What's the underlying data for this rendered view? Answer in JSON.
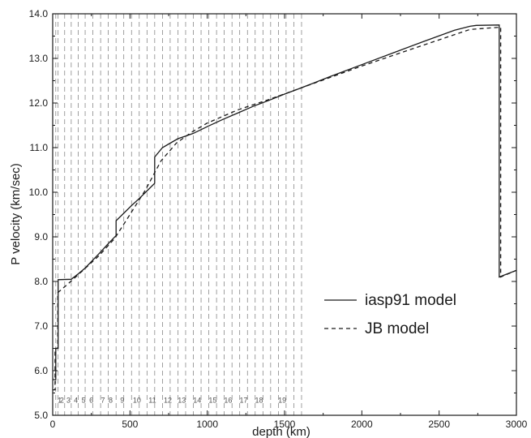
{
  "chart_data": {
    "type": "line",
    "title": "",
    "xlabel": "depth (km)",
    "ylabel": "P velocity (km/sec)",
    "xlim": [
      0,
      3000
    ],
    "ylim": [
      5.0,
      14.0
    ],
    "xticks": [
      0,
      500,
      1000,
      1500,
      2000,
      2500,
      3000
    ],
    "yticks": [
      5.0,
      6.0,
      7.0,
      8.0,
      9.0,
      10.0,
      11.0,
      12.0,
      13.0,
      14.0
    ],
    "legend_position": "lower-right",
    "grid": false,
    "series": [
      {
        "name": "iasp91 model",
        "style": "solid",
        "color": "#1a1a1a",
        "x": [
          0,
          20,
          20,
          35,
          35,
          120,
          165,
          210,
          260,
          310,
          360,
          410,
          410,
          460,
          510,
          560,
          610,
          660,
          660,
          710,
          760,
          810,
          860,
          910,
          1000,
          1100,
          1200,
          1300,
          1400,
          1500,
          1600,
          1800,
          2000,
          2200,
          2400,
          2600,
          2700,
          2740,
          2889,
          2889,
          3000
        ],
        "y": [
          5.8,
          5.8,
          6.5,
          6.5,
          8.04,
          8.05,
          8.17,
          8.3,
          8.48,
          8.66,
          8.85,
          9.03,
          9.36,
          9.53,
          9.7,
          9.86,
          10.03,
          10.2,
          10.79,
          11.0,
          11.1,
          11.2,
          11.26,
          11.32,
          11.47,
          11.63,
          11.78,
          11.93,
          12.06,
          12.2,
          12.33,
          12.6,
          12.86,
          13.12,
          13.38,
          13.63,
          13.72,
          13.74,
          13.75,
          8.1,
          8.25
        ]
      },
      {
        "name": "JB model",
        "style": "dashed",
        "color": "#1a1a1a",
        "x": [
          0,
          15,
          15,
          33,
          33,
          100,
          200,
          300,
          400,
          500,
          600,
          700,
          800,
          900,
          1000,
          1100,
          1200,
          1400,
          1600,
          2000,
          2400,
          2700,
          2898,
          2898,
          3000
        ],
        "y": [
          5.57,
          5.57,
          6.5,
          6.5,
          7.75,
          7.95,
          8.26,
          8.58,
          8.96,
          9.5,
          10.05,
          10.7,
          11.1,
          11.35,
          11.55,
          11.7,
          11.85,
          12.08,
          12.33,
          12.83,
          13.3,
          13.65,
          13.7,
          8.1,
          8.25
        ]
      }
    ],
    "layer_boundaries_km": [
      20,
      35,
      77.5,
      120,
      165,
      210,
      260,
      310,
      360,
      410,
      460,
      510,
      560,
      610,
      660,
      710,
      760,
      810,
      860,
      910,
      960,
      1010,
      1060,
      1110,
      1160,
      1210,
      1260,
      1310,
      1360,
      1410,
      1460,
      1510,
      1560,
      1610
    ],
    "layer_labels": [
      {
        "text": "1",
        "x": 45,
        "y": 5.28
      },
      {
        "text": "2",
        "x": 60,
        "y": 5.28
      },
      {
        "text": "3",
        "x": 102,
        "y": 5.28
      },
      {
        "text": "4",
        "x": 150,
        "y": 5.28
      },
      {
        "text": "5",
        "x": 200,
        "y": 5.28
      },
      {
        "text": "6",
        "x": 250,
        "y": 5.28
      },
      {
        "text": "7",
        "x": 325,
        "y": 5.28
      },
      {
        "text": "8",
        "x": 375,
        "y": 5.28
      },
      {
        "text": "9",
        "x": 450,
        "y": 5.28
      },
      {
        "text": "10",
        "x": 545,
        "y": 5.28
      },
      {
        "text": "11",
        "x": 645,
        "y": 5.28
      },
      {
        "text": "12",
        "x": 745,
        "y": 5.28
      },
      {
        "text": "13",
        "x": 835,
        "y": 5.28
      },
      {
        "text": "14",
        "x": 935,
        "y": 5.28
      },
      {
        "text": "15",
        "x": 1035,
        "y": 5.28
      },
      {
        "text": "16",
        "x": 1135,
        "y": 5.28
      },
      {
        "text": "17",
        "x": 1235,
        "y": 5.28
      },
      {
        "text": "18",
        "x": 1335,
        "y": 5.28
      },
      {
        "text": "19",
        "x": 1485,
        "y": 5.28
      }
    ]
  }
}
